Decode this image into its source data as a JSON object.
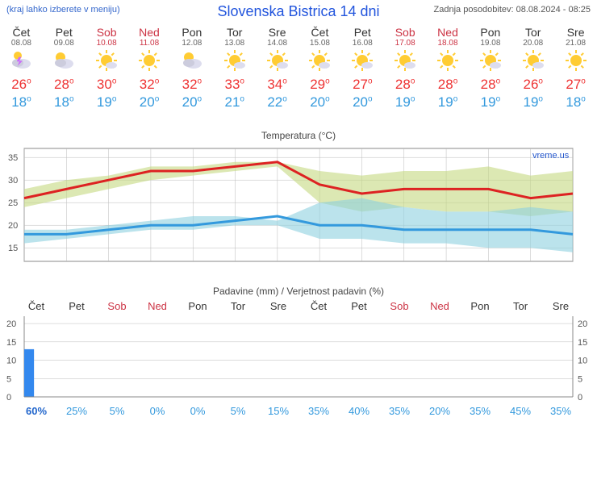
{
  "header": {
    "menu_hint": "(kraj lahko izberete v meniju)",
    "title": "Slovenska Bistrica 14 dni",
    "update_label": "Zadnja posodobitev: 08.08.2024 - 08:25"
  },
  "days": [
    {
      "name": "Čet",
      "date": "08.08",
      "weekend": false,
      "icon": "storm",
      "high": 26,
      "low": 18
    },
    {
      "name": "Pet",
      "date": "09.08",
      "weekend": false,
      "icon": "partly_cloudy",
      "high": 28,
      "low": 18
    },
    {
      "name": "Sob",
      "date": "10.08",
      "weekend": true,
      "icon": "mostly_sunny",
      "high": 30,
      "low": 19
    },
    {
      "name": "Ned",
      "date": "11.08",
      "weekend": true,
      "icon": "sunny",
      "high": 32,
      "low": 20
    },
    {
      "name": "Pon",
      "date": "12.08",
      "weekend": false,
      "icon": "partly_cloudy",
      "high": 32,
      "low": 20
    },
    {
      "name": "Tor",
      "date": "13.08",
      "weekend": false,
      "icon": "mostly_sunny",
      "high": 33,
      "low": 21
    },
    {
      "name": "Sre",
      "date": "14.08",
      "weekend": false,
      "icon": "mostly_sunny",
      "high": 34,
      "low": 22
    },
    {
      "name": "Čet",
      "date": "15.08",
      "weekend": false,
      "icon": "mostly_sunny",
      "high": 29,
      "low": 20
    },
    {
      "name": "Pet",
      "date": "16.08",
      "weekend": false,
      "icon": "mostly_sunny",
      "high": 27,
      "low": 20
    },
    {
      "name": "Sob",
      "date": "17.08",
      "weekend": true,
      "icon": "mostly_sunny",
      "high": 28,
      "low": 19
    },
    {
      "name": "Ned",
      "date": "18.08",
      "weekend": true,
      "icon": "sunny",
      "high": 28,
      "low": 19
    },
    {
      "name": "Pon",
      "date": "19.08",
      "weekend": false,
      "icon": "mostly_sunny",
      "high": 28,
      "low": 19
    },
    {
      "name": "Tor",
      "date": "20.08",
      "weekend": false,
      "icon": "mostly_sunny",
      "high": 26,
      "low": 19
    },
    {
      "name": "Sre",
      "date": "21.08",
      "weekend": false,
      "icon": "sunny",
      "high": 27,
      "low": 18
    }
  ],
  "temp_chart": {
    "title": "Temperatura (°C)",
    "watermark": "vreme.us",
    "ylim": [
      12,
      37
    ],
    "yticks": [
      15,
      20,
      25,
      30,
      35
    ],
    "grid_color": "#bbbbbb",
    "high_line_color": "#dd2222",
    "high_band_color": "#c4d880",
    "low_line_color": "#3399dd",
    "low_band_color": "#8dd0e0",
    "background": "#ffffff",
    "high_series": [
      26,
      28,
      30,
      32,
      32,
      33,
      34,
      29,
      27,
      28,
      28,
      28,
      26,
      27
    ],
    "high_band_upper": [
      28,
      30,
      31,
      33,
      33,
      34,
      34,
      32,
      31,
      32,
      32,
      33,
      31,
      32
    ],
    "high_band_lower": [
      24,
      26,
      28,
      30,
      31,
      32,
      33,
      25,
      23,
      24,
      23,
      23,
      22,
      23
    ],
    "low_series": [
      18,
      18,
      19,
      20,
      20,
      21,
      22,
      20,
      20,
      19,
      19,
      19,
      19,
      18
    ],
    "low_band_upper": [
      19,
      19,
      20,
      21,
      22,
      22,
      21,
      25,
      26,
      24,
      23,
      23,
      24,
      23
    ],
    "low_band_lower": [
      16,
      17,
      18,
      19,
      19,
      20,
      20,
      17,
      17,
      16,
      16,
      15,
      15,
      14
    ]
  },
  "precip_chart": {
    "title": "Padavine (mm) / Verjetnost padavin (%)",
    "ylim": [
      0,
      22
    ],
    "yticks": [
      0,
      5,
      10,
      15,
      20
    ],
    "grid_color": "#bbbbbb",
    "bar_color": "#3388ee",
    "zero_color": "#3399dd",
    "prob_color": "#3399dd",
    "prob_color_high": "#2266cc",
    "amounts_mm": [
      13,
      0,
      0,
      0,
      0,
      0,
      0,
      0,
      0,
      0,
      0,
      0,
      0,
      0
    ],
    "probs": [
      60,
      25,
      5,
      0,
      0,
      5,
      15,
      35,
      40,
      35,
      20,
      35,
      45,
      35
    ]
  }
}
